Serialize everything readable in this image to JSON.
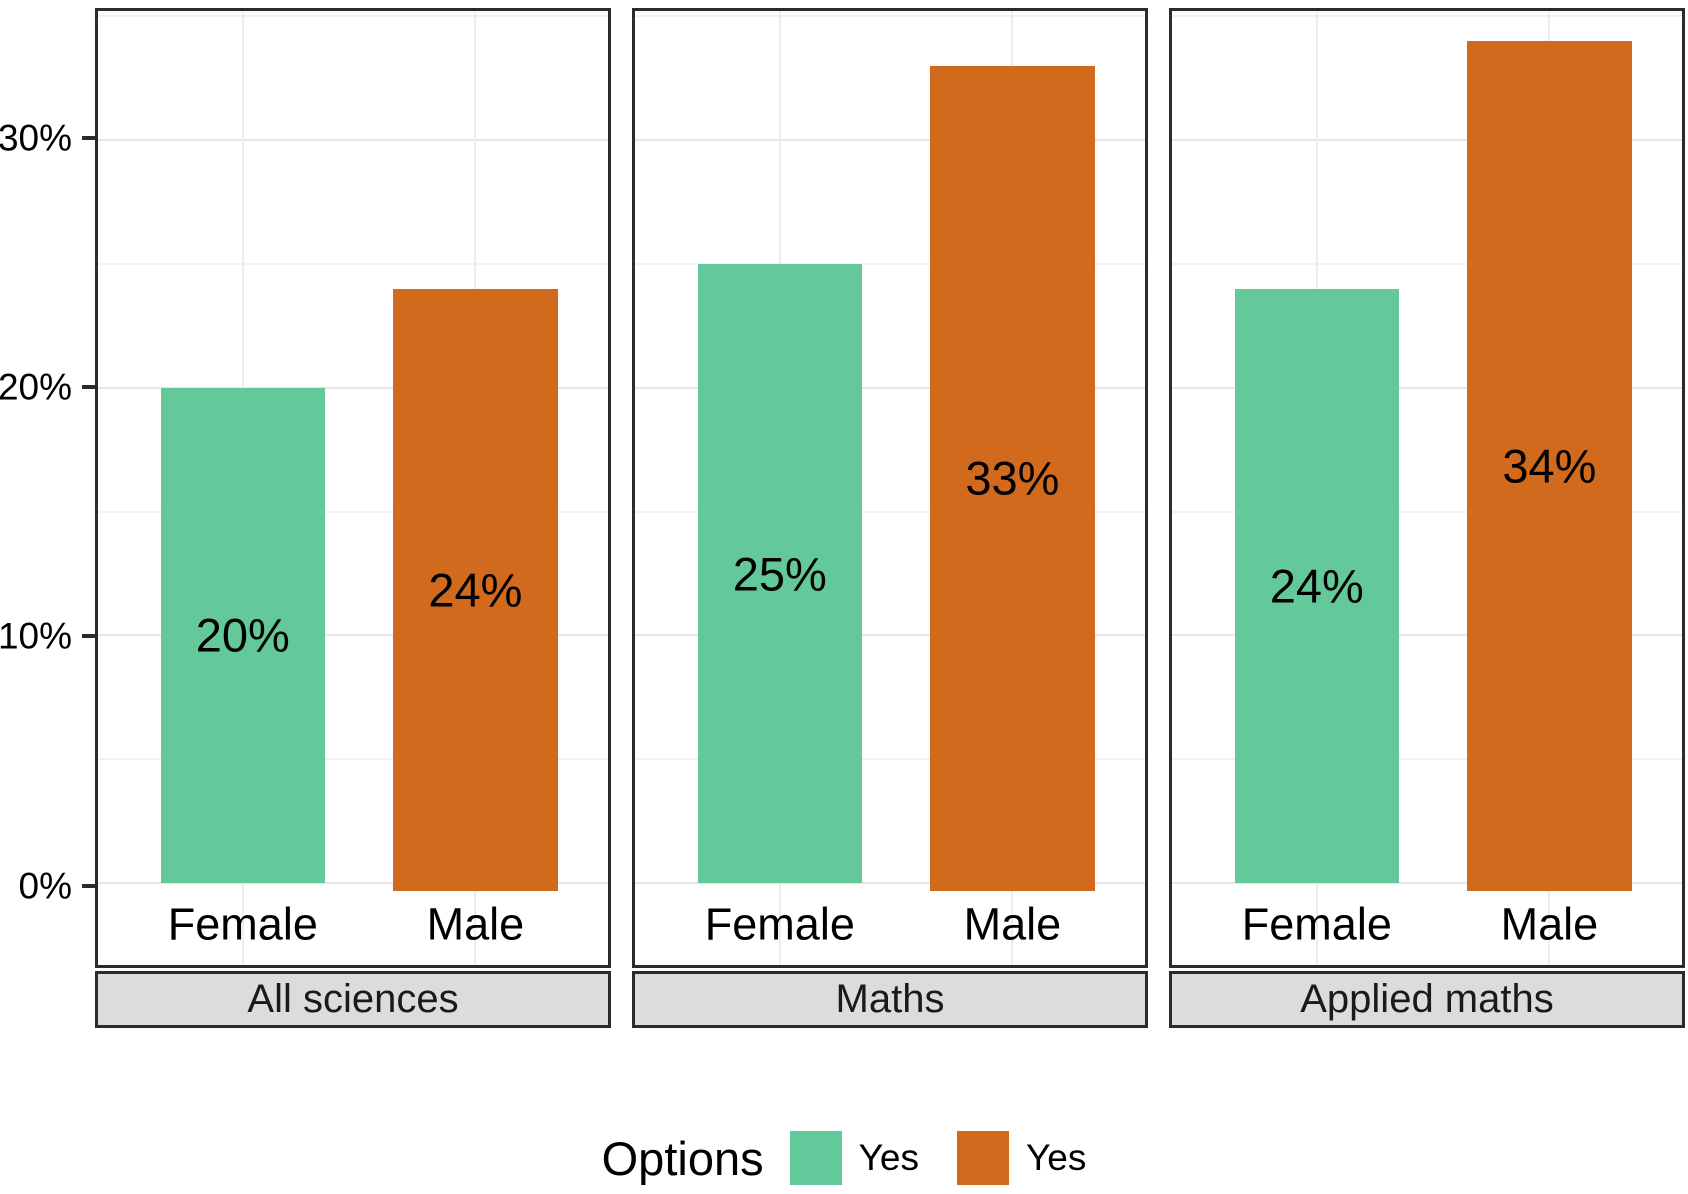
{
  "chart_data": {
    "type": "bar",
    "title": "",
    "facets": [
      {
        "label": "All sciences",
        "categories": [
          "Female",
          "Male"
        ],
        "values": [
          20,
          24
        ],
        "value_labels": [
          "20%",
          "24%"
        ]
      },
      {
        "label": "Maths",
        "categories": [
          "Female",
          "Male"
        ],
        "values": [
          25,
          33
        ],
        "value_labels": [
          "25%",
          "33%"
        ]
      },
      {
        "label": "Applied maths",
        "categories": [
          "Female",
          "Male"
        ],
        "values": [
          24,
          34
        ],
        "value_labels": [
          "24%",
          "34%"
        ]
      }
    ],
    "series": [
      {
        "name": "Yes",
        "category": "Female",
        "color": "#63c99a"
      },
      {
        "name": "Yes",
        "category": "Male",
        "color": "#d26a1e"
      }
    ],
    "y_axis": {
      "ticks": [
        {
          "value": 0,
          "label": "0%"
        },
        {
          "value": 10,
          "label": "10%"
        },
        {
          "value": 20,
          "label": "20%"
        },
        {
          "value": 30,
          "label": "30%"
        }
      ],
      "minor_ticks": [
        5,
        15,
        25,
        35
      ],
      "ylim": [
        -3.3,
        35.2
      ]
    },
    "grid": true,
    "legend": {
      "title": "Options",
      "position": "bottom",
      "entries": [
        {
          "label": "Yes",
          "color": "#63c99a"
        },
        {
          "label": "Yes",
          "color": "#d26a1e"
        }
      ]
    },
    "colors": {
      "panel_border": "#2b2b2b",
      "strip_background": "#dcdcdc",
      "grid_major": "#e6e6e6",
      "grid_minor": "#f2f2f2",
      "text": "#000000"
    }
  }
}
